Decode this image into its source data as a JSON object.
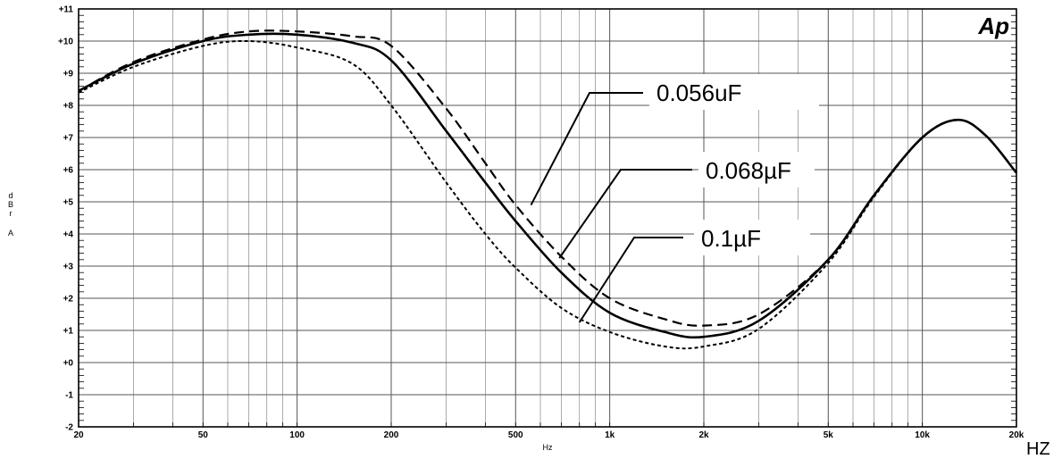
{
  "chart_data": {
    "type": "line",
    "x_scale": "log",
    "xlim": [
      20,
      20000
    ],
    "ylim": [
      -2,
      11
    ],
    "grid": true,
    "xlabel": "Hz",
    "ylabel": "dBr A",
    "corner_label": "HZ",
    "logo": "Ap",
    "x_tick_labels": [
      "20",
      "50",
      "100",
      "200",
      "500",
      "1k",
      "2k",
      "5k",
      "10k",
      "20k"
    ],
    "y_tick_labels": [
      "-2",
      "-1",
      "+0",
      "+1",
      "+2",
      "+3",
      "+4",
      "+5",
      "+6",
      "+7",
      "+8",
      "+9",
      "+10",
      "+11"
    ],
    "series": [
      {
        "name": "0.056uF",
        "style": "long-dash",
        "x": [
          20,
          30,
          50,
          70,
          100,
          150,
          200,
          300,
          400,
          500,
          700,
          1000,
          1500,
          2000,
          3000,
          5000,
          7000,
          10000,
          13000,
          16000,
          20000
        ],
        "y": [
          8.45,
          9.35,
          10.05,
          10.3,
          10.3,
          10.15,
          9.85,
          7.9,
          6.2,
          4.9,
          3.3,
          2.0,
          1.35,
          1.15,
          1.5,
          3.2,
          5.2,
          7.0,
          7.55,
          7.05,
          5.9
        ]
      },
      {
        "name": "0.068µF",
        "style": "solid",
        "x": [
          20,
          30,
          50,
          70,
          100,
          150,
          200,
          300,
          400,
          500,
          700,
          1000,
          1500,
          2000,
          3000,
          5000,
          7000,
          10000,
          13000,
          16000,
          20000
        ],
        "y": [
          8.45,
          9.3,
          10.0,
          10.2,
          10.2,
          9.95,
          9.4,
          7.2,
          5.6,
          4.4,
          2.8,
          1.55,
          0.95,
          0.8,
          1.3,
          3.2,
          5.2,
          7.0,
          7.55,
          7.05,
          5.9
        ]
      },
      {
        "name": "0.1µF",
        "style": "short-dash",
        "x": [
          20,
          30,
          50,
          70,
          100,
          150,
          200,
          300,
          400,
          500,
          700,
          1000,
          1500,
          2000,
          3000,
          5000,
          7000,
          10000,
          13000,
          16000,
          20000
        ],
        "y": [
          8.4,
          9.2,
          9.85,
          10.0,
          9.8,
          9.3,
          8.0,
          5.6,
          4.0,
          2.95,
          1.7,
          0.95,
          0.5,
          0.5,
          1.05,
          3.1,
          5.15,
          7.0,
          7.55,
          7.05,
          5.9
        ]
      }
    ],
    "callouts": [
      {
        "label": "0.056uF",
        "series": 0,
        "x": 560,
        "y": 4.9
      },
      {
        "label": "0.068µF",
        "series": 1,
        "x": 690,
        "y": 3.25
      },
      {
        "label": "0.1µF",
        "series": 2,
        "x": 800,
        "y": 1.25
      }
    ]
  }
}
